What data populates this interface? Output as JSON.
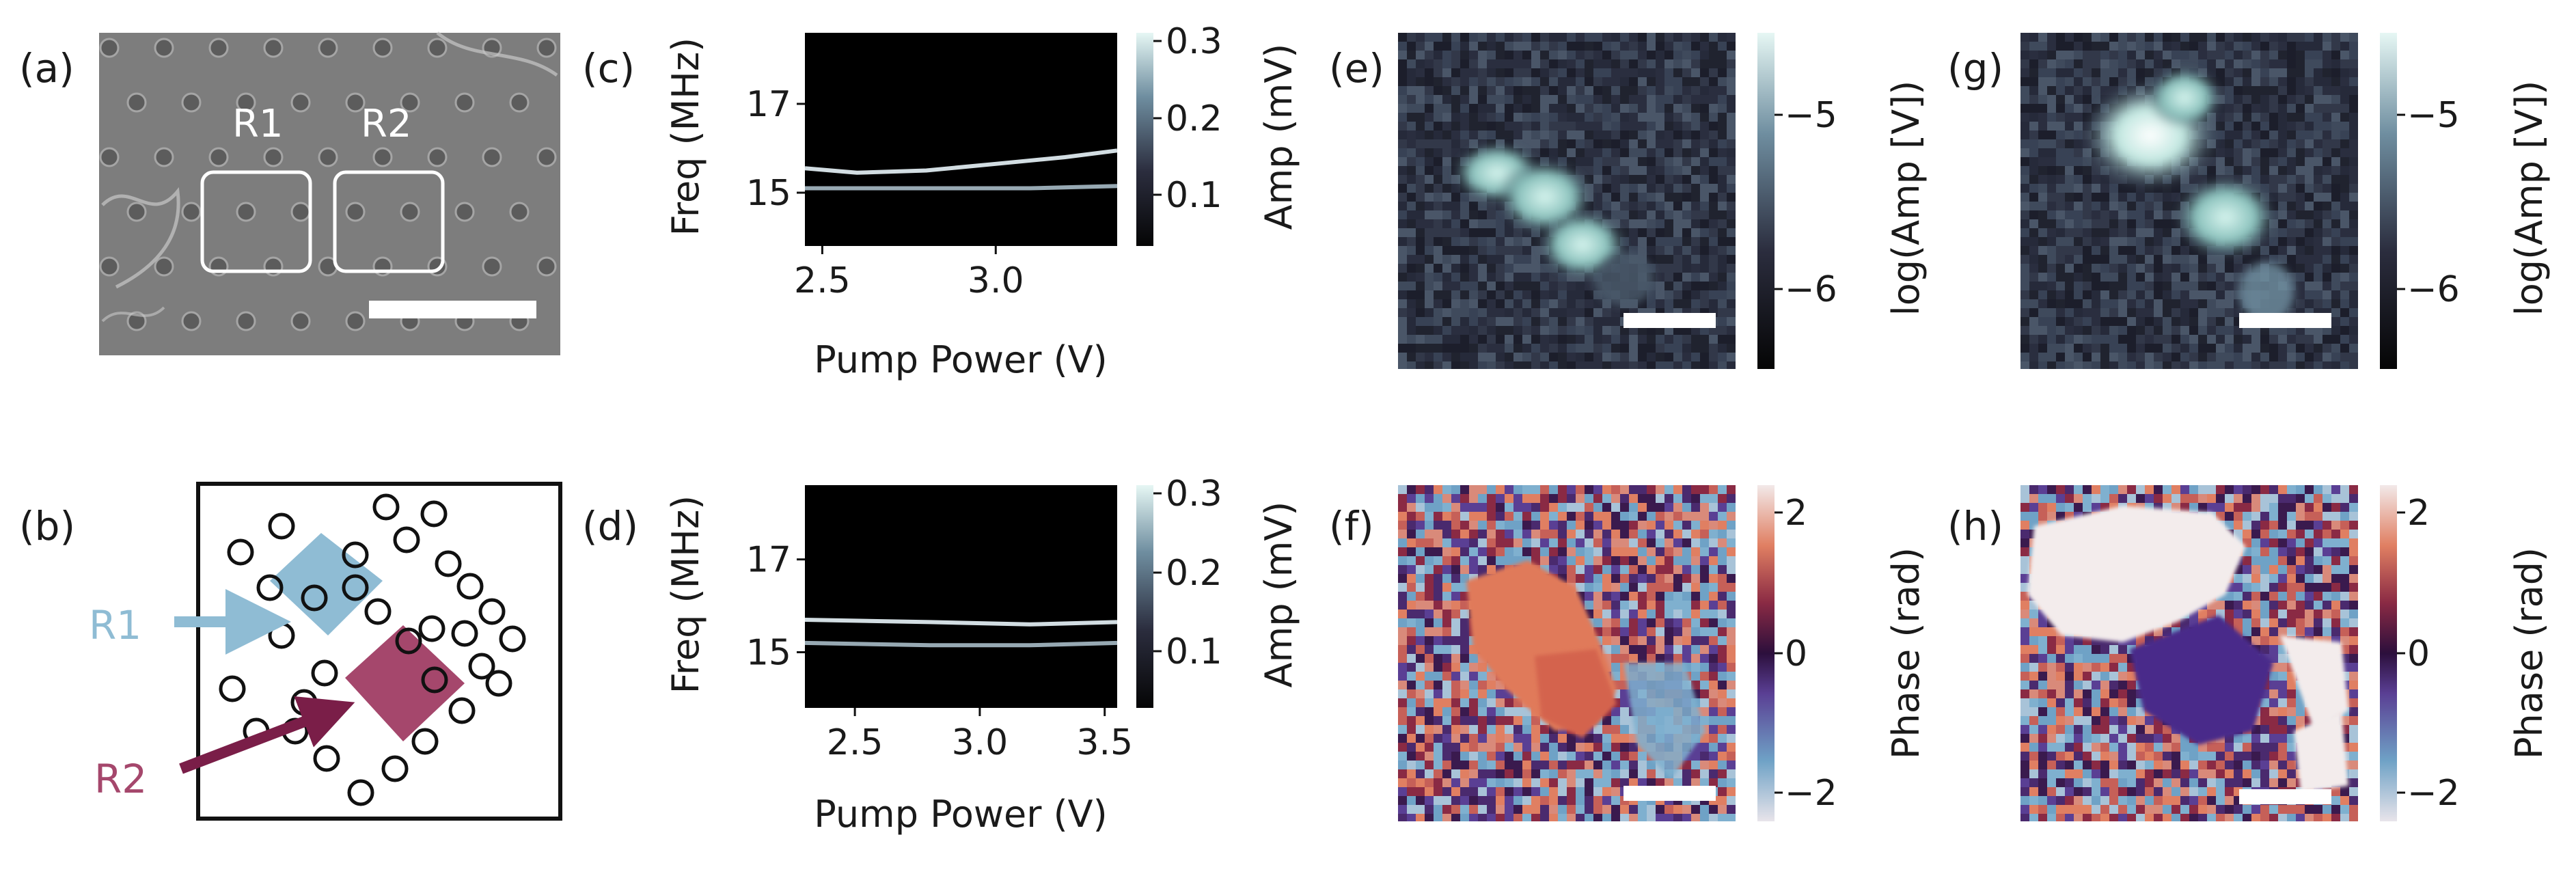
{
  "panel_labels": {
    "a": "(a)",
    "b": "(b)",
    "c": "(c)",
    "d": "(d)",
    "e": "(e)",
    "f": "(f)",
    "g": "(g)",
    "h": "(h)"
  },
  "sem": {
    "region_labels": [
      "R1",
      "R2"
    ]
  },
  "schematic": {
    "r1_label": "R1",
    "r2_label": "R2",
    "r1_color": "#8fbcd4",
    "r2_color": "#a5476c",
    "r2_arrow_color": "#7a1e48"
  },
  "colorbars": {
    "amp_label": "Amp (mV)",
    "amp_ticks": [
      "0.1",
      "0.2",
      "0.3"
    ],
    "log_label": "log(Amp [V])",
    "log_ticks": [
      "−5",
      "−6"
    ],
    "phase_label": "Phase (rad)",
    "phase_ticks": [
      "2",
      "0",
      "−2"
    ]
  },
  "chart_data": [
    {
      "panel": "(c)",
      "type": "heatmap",
      "xlabel": "Pump Power (V)",
      "ylabel": "Freq (MHz)",
      "x_ticks": [
        "2.5",
        "3.0"
      ],
      "y_ticks": [
        "17",
        "15"
      ],
      "xlim": [
        2.45,
        3.35
      ],
      "ylim": [
        13.8,
        18.6
      ],
      "series": [
        {
          "x": [
            2.45,
            2.6,
            2.8,
            3.0,
            3.2,
            3.35
          ],
          "y": [
            15.55,
            15.45,
            15.5,
            15.65,
            15.8,
            15.95
          ]
        },
        {
          "x": [
            2.45,
            2.8,
            3.1,
            3.35
          ],
          "y": [
            15.1,
            15.1,
            15.1,
            15.15
          ]
        }
      ]
    },
    {
      "panel": "(d)",
      "type": "heatmap",
      "xlabel": "Pump Power (V)",
      "ylabel": "Freq (MHz)",
      "x_ticks": [
        "2.5",
        "3.0",
        "3.5"
      ],
      "y_ticks": [
        "17",
        "15"
      ],
      "xlim": [
        2.3,
        3.55
      ],
      "ylim": [
        13.8,
        18.6
      ],
      "series": [
        {
          "x": [
            2.3,
            2.8,
            3.2,
            3.55
          ],
          "y": [
            15.7,
            15.65,
            15.6,
            15.65
          ]
        },
        {
          "x": [
            2.3,
            2.8,
            3.2,
            3.55
          ],
          "y": [
            15.2,
            15.15,
            15.15,
            15.2
          ]
        }
      ]
    },
    {
      "panel": "(e)",
      "type": "heatmap",
      "zlabel": "log(Amp [V])",
      "zlim": [
        -6.5,
        -4.6
      ]
    },
    {
      "panel": "(f)",
      "type": "heatmap",
      "zlabel": "Phase (rad)",
      "zlim": [
        -2.5,
        2.5
      ]
    },
    {
      "panel": "(g)",
      "type": "heatmap",
      "zlabel": "log(Amp [V])",
      "zlim": [
        -6.5,
        -4.6
      ]
    },
    {
      "panel": "(h)",
      "type": "heatmap",
      "zlabel": "Phase (rad)",
      "zlim": [
        -2.5,
        2.5
      ]
    }
  ]
}
